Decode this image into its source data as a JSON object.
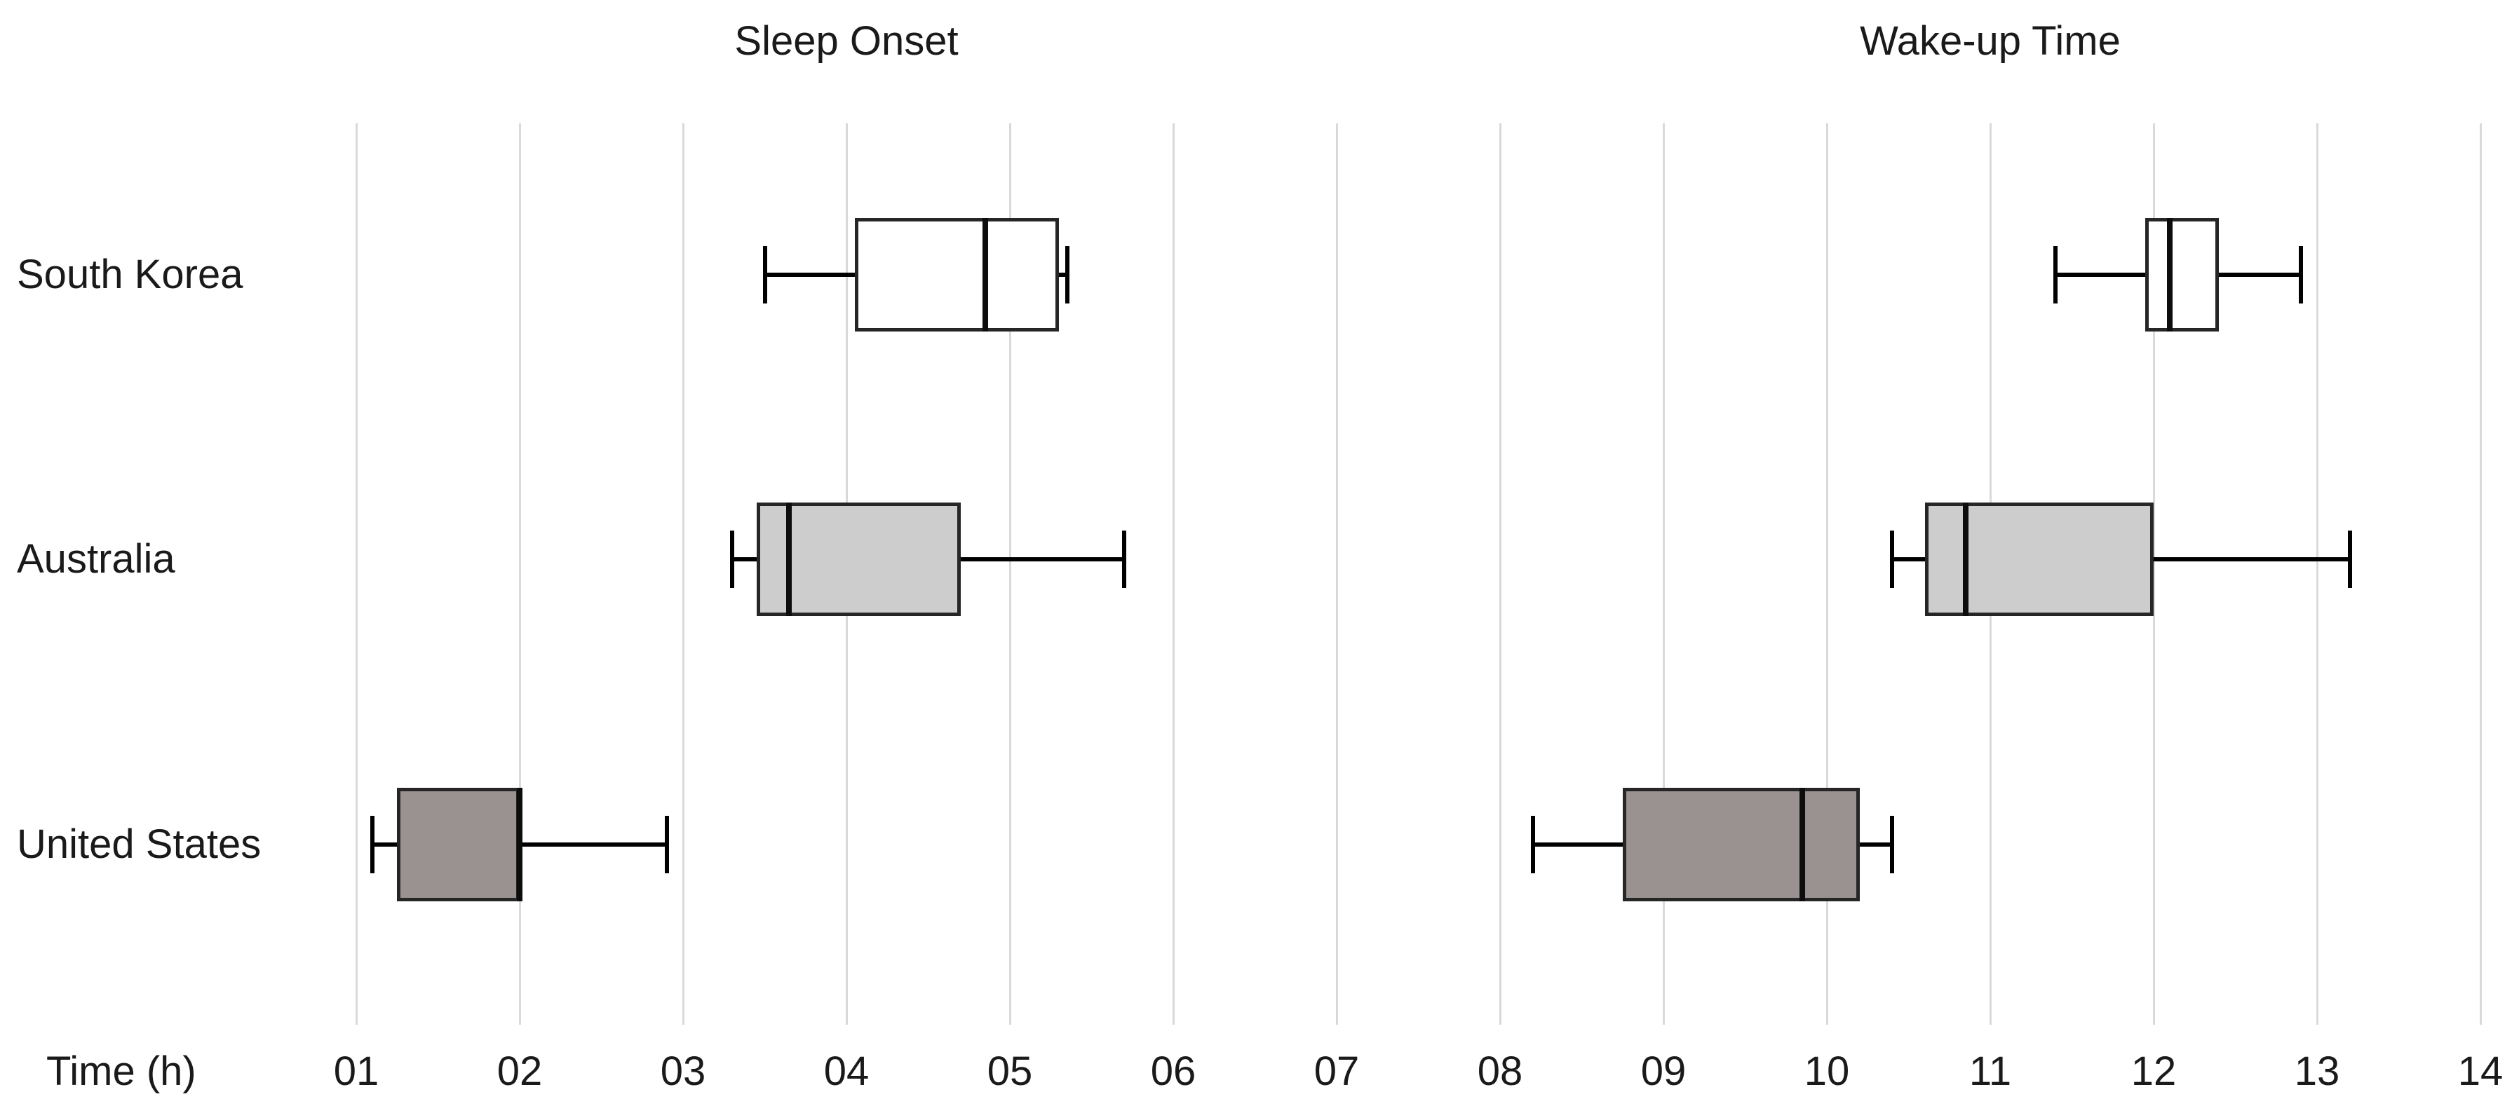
{
  "axis": {
    "label": "Time (h)",
    "tick_labels": [
      "01",
      "02",
      "03",
      "04",
      "05",
      "06",
      "07",
      "08",
      "09",
      "10",
      "11",
      "12",
      "13",
      "14"
    ],
    "tick_values": [
      1,
      2,
      3,
      4,
      5,
      6,
      7,
      8,
      9,
      10,
      11,
      12,
      13,
      14
    ]
  },
  "titles": {
    "left": "Sleep Onset",
    "right": "Wake-up Time"
  },
  "colors": {
    "background": "#ffffff",
    "gridline": "#d9d9d9",
    "text": "#1a1a1a",
    "box_border": "#262626",
    "whisker": "#000000",
    "fill_south_korea": "#ffffff",
    "fill_australia": "#cdcdcd",
    "fill_united_states": "#9a9290"
  },
  "chart_data": {
    "type": "boxplot",
    "orientation": "horizontal",
    "categories": [
      "South Korea",
      "Australia",
      "United States"
    ],
    "xlabel": "Time (h)",
    "xlim": [
      1,
      14
    ],
    "grid": true,
    "panels": [
      {
        "title": "Sleep Onset",
        "title_center_at_value": 4,
        "series": [
          {
            "category": "South Korea",
            "whisker_min": 3.5,
            "q1": 4.05,
            "median": 4.85,
            "q3": 5.3,
            "whisker_max": 5.35,
            "fill": "#ffffff"
          },
          {
            "category": "Australia",
            "whisker_min": 3.3,
            "q1": 3.45,
            "median": 3.65,
            "q3": 4.7,
            "whisker_max": 5.7,
            "fill": "#cdcdcd"
          },
          {
            "category": "United States",
            "whisker_min": 1.1,
            "q1": 1.25,
            "median": 2.0,
            "q3": 2.0,
            "whisker_max": 2.9,
            "fill": "#9a9290"
          }
        ]
      },
      {
        "title": "Wake-up Time",
        "title_center_at_value": 11,
        "series": [
          {
            "category": "South Korea",
            "whisker_min": 11.4,
            "q1": 11.95,
            "median": 12.1,
            "q3": 12.4,
            "whisker_max": 12.9,
            "fill": "#ffffff"
          },
          {
            "category": "Australia",
            "whisker_min": 10.4,
            "q1": 10.6,
            "median": 10.85,
            "q3": 12.0,
            "whisker_max": 13.2,
            "fill": "#cdcdcd"
          },
          {
            "category": "United States",
            "whisker_min": 8.2,
            "q1": 8.75,
            "median": 9.85,
            "q3": 10.2,
            "whisker_max": 10.4,
            "fill": "#9a9290"
          }
        ]
      }
    ]
  }
}
